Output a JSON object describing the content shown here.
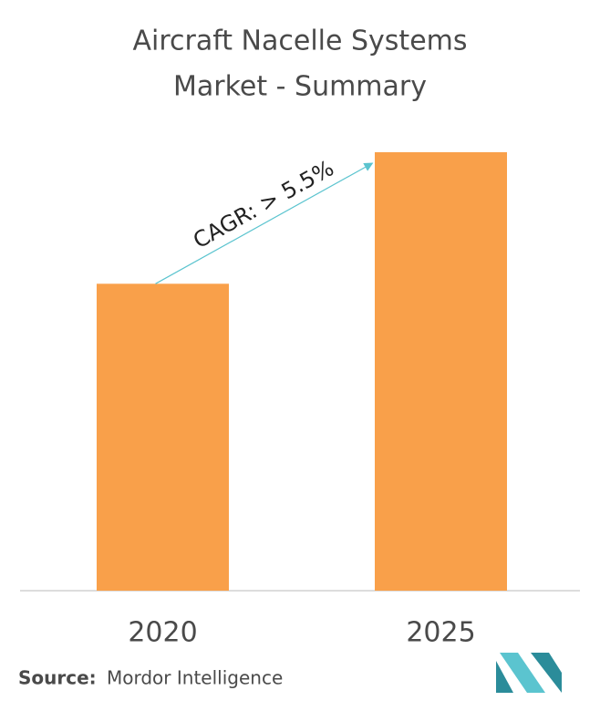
{
  "chart_data": {
    "type": "bar",
    "title_lines": [
      "Aircraft Nacelle Systems",
      "Market - Summary"
    ],
    "categories": [
      "2020",
      "2025"
    ],
    "values": [
      70,
      100
    ],
    "ylim": [
      0,
      100
    ],
    "color": "#f9a04a",
    "annotation": "CAGR: > 5.5%",
    "annotation_color": "#5bc4cf",
    "source_label": "Source:",
    "source": "Mordor Intelligence"
  }
}
